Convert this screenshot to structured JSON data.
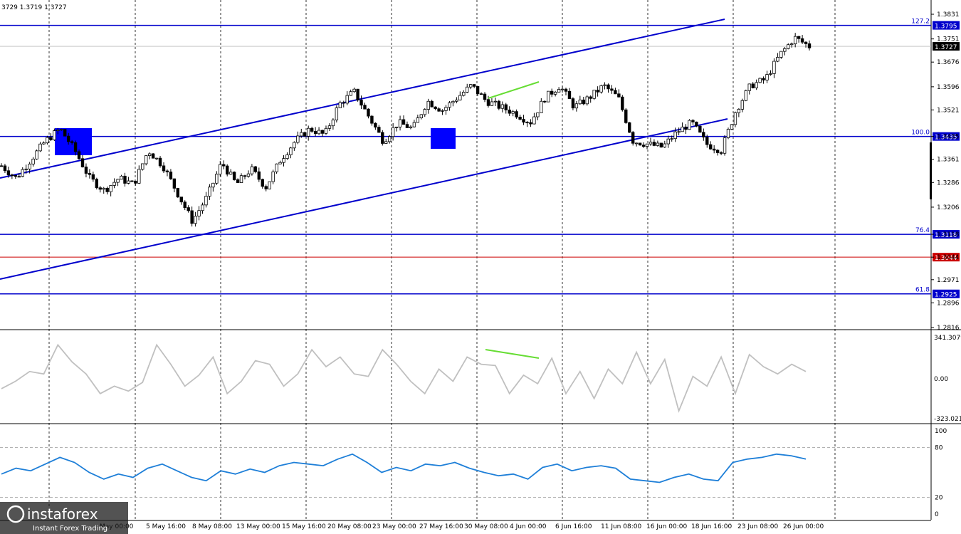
{
  "header": {
    "ohlc": "3729 1.3719 1.3727"
  },
  "chart_data": [
    {
      "type": "candlestick",
      "name": "price",
      "ylim": [
        1.278,
        1.388
      ],
      "y_ticks": [
        "1.3831",
        "1.3751",
        "1.3676",
        "1.3596",
        "1.3521",
        "1.3435",
        "1.3361",
        "1.3286",
        "1.3206",
        "1.3118",
        "1.3044",
        "1.2971",
        "1.2896",
        "1.2816"
      ],
      "x_ticks": [
        "May 00:00",
        "5 May 16:00",
        "8 May 08:00",
        "13 May 00:00",
        "15 May 16:00",
        "20 May 08:00",
        "23 May 00:00",
        "27 May 16:00",
        "30 May 08:00",
        "4 Jun 00:00",
        "6 Jun 16:00",
        "11 Jun 08:00",
        "16 Jun 00:00",
        "18 Jun 16:00",
        "23 Jun 08:00",
        "26 Jun 00:00"
      ],
      "fib_levels": [
        {
          "ratio": "127.2",
          "value": "1.3795",
          "color": "#0000cc"
        },
        {
          "ratio": "100.0",
          "value": "1.3435",
          "color": "#0000cc"
        },
        {
          "ratio": "76.4",
          "value": "1.3118",
          "color": "#0000cc"
        },
        {
          "ratio": "61.8",
          "value": "1.2925",
          "color": "#0000cc"
        }
      ],
      "current_price": {
        "value": "1.3727",
        "color": "#000000"
      },
      "red_level": {
        "value": "1.3044",
        "color": "#cc0000"
      },
      "key_closes": [
        1.334,
        1.33,
        1.336,
        1.342,
        1.346,
        1.339,
        1.33,
        1.326,
        1.33,
        1.328,
        1.339,
        1.334,
        1.325,
        1.316,
        1.324,
        1.335,
        1.328,
        1.333,
        1.327,
        1.336,
        1.342,
        1.346,
        1.344,
        1.354,
        1.358,
        1.35,
        1.342,
        1.348,
        1.346,
        1.355,
        1.352,
        1.356,
        1.36,
        1.355,
        1.353,
        1.351,
        1.348,
        1.356,
        1.36,
        1.353,
        1.356,
        1.36,
        1.356,
        1.342,
        1.341,
        1.34,
        1.345,
        1.348,
        1.341,
        1.339,
        1.352,
        1.36,
        1.362,
        1.37,
        1.3755,
        1.3727
      ],
      "channel_color": "#0000cc",
      "divergence_color": "#66dd33"
    },
    {
      "type": "line",
      "name": "CCI",
      "y_ticks": [
        "341.3079",
        "0.00",
        "-323.0213"
      ],
      "ylim": [
        -323.0213,
        341.3079
      ],
      "color": "#c0c0c0",
      "values": [
        -80,
        -20,
        60,
        40,
        280,
        140,
        40,
        -120,
        -60,
        -100,
        -30,
        280,
        120,
        -60,
        30,
        180,
        -120,
        -20,
        150,
        120,
        -60,
        40,
        240,
        100,
        180,
        40,
        20,
        240,
        120,
        -20,
        -120,
        80,
        -20,
        180,
        120,
        110,
        -120,
        30,
        -40,
        170,
        -120,
        60,
        -160,
        80,
        -40,
        220,
        -40,
        160,
        -260,
        20,
        -60,
        180,
        -120,
        200,
        100,
        40,
        120,
        60
      ]
    },
    {
      "type": "line",
      "name": "RSI",
      "y_ticks": [
        "100",
        "80",
        "20",
        "0"
      ],
      "ylim": [
        0,
        100
      ],
      "color": "#1e7fd8",
      "values": [
        48,
        55,
        52,
        60,
        68,
        62,
        50,
        42,
        48,
        44,
        55,
        60,
        52,
        44,
        40,
        52,
        48,
        54,
        50,
        58,
        62,
        60,
        58,
        66,
        72,
        62,
        50,
        56,
        52,
        60,
        58,
        62,
        55,
        50,
        46,
        48,
        42,
        56,
        60,
        52,
        56,
        58,
        55,
        42,
        40,
        38,
        44,
        48,
        42,
        40,
        62,
        66,
        68,
        72,
        70,
        66
      ]
    }
  ],
  "logo": {
    "brand": "instaforex",
    "tagline": "Instant Forex Trading"
  }
}
